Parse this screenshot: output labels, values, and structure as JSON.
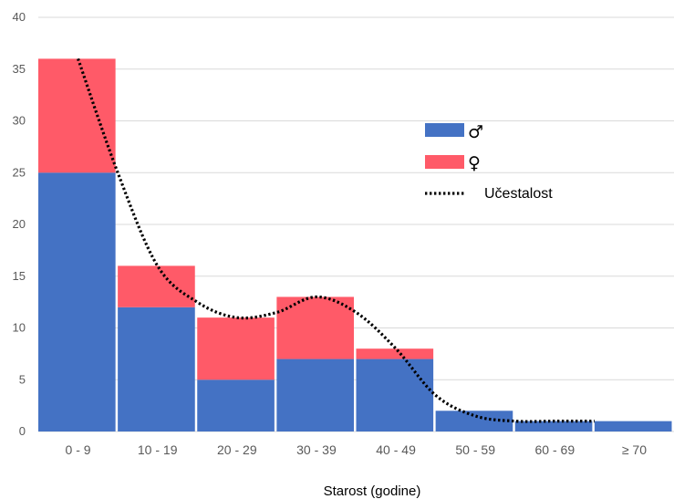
{
  "chart_data": {
    "type": "bar",
    "stacked": true,
    "categories": [
      "0 - 9",
      "10 - 19",
      "20 - 29",
      "30 - 39",
      "40 - 49",
      "50 - 59",
      "60 - 69",
      "≥ 70"
    ],
    "series": [
      {
        "name": "♂",
        "color": "#4472C4",
        "values": [
          25,
          12,
          5,
          7,
          7,
          2,
          1,
          1
        ]
      },
      {
        "name": "♀",
        "color": "#FF5A68",
        "values": [
          11,
          4,
          6,
          6,
          1,
          0,
          0,
          0
        ]
      }
    ],
    "trend": {
      "name": "Učestalost",
      "style": "dotted",
      "color": "#000000",
      "points": [
        [
          0.5,
          36
        ],
        [
          1.0,
          25
        ],
        [
          1.5,
          16
        ],
        [
          2.0,
          12.5
        ],
        [
          2.5,
          11
        ],
        [
          3.0,
          11.5
        ],
        [
          3.5,
          13
        ],
        [
          4.0,
          11.5
        ],
        [
          4.5,
          8
        ],
        [
          5.0,
          3.5
        ],
        [
          5.5,
          1.5
        ],
        [
          6.0,
          1.0
        ],
        [
          6.5,
          1.0
        ],
        [
          7.0,
          1.0
        ]
      ]
    },
    "xlabel": "Starost (godine)",
    "ylabel": "",
    "ylim": [
      0,
      40
    ],
    "yticks": [
      0,
      5,
      10,
      15,
      20,
      25,
      30,
      35,
      40
    ],
    "grid": true,
    "legend": "right"
  }
}
